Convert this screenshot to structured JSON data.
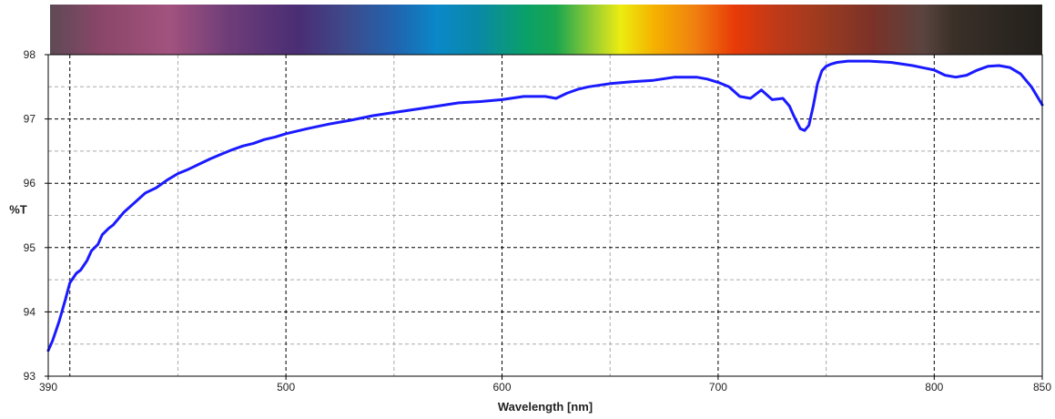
{
  "chart_data": {
    "type": "line",
    "title": "",
    "xlabel": "Wavelength [nm]",
    "ylabel": "%T",
    "xlim": [
      390,
      850
    ],
    "ylim": [
      93,
      98
    ],
    "x_tick_labels": [
      "390",
      "500",
      "600",
      "700",
      "800",
      "850"
    ],
    "y_tick_labels": [
      "93",
      "94",
      "95",
      "96",
      "97",
      "98"
    ],
    "grid": true,
    "legend": "none",
    "spectrum_bar": true,
    "colors": {
      "line": "#1a1aff",
      "grid_major": "#000000",
      "grid_minor": "#aaaaaa",
      "frame": "#000000"
    },
    "series": [
      {
        "name": "",
        "x": [
          390,
          392,
          395,
          398,
          400,
          403,
          405,
          408,
          410,
          413,
          415,
          418,
          420,
          425,
          430,
          435,
          440,
          445,
          450,
          455,
          460,
          465,
          470,
          475,
          480,
          485,
          490,
          495,
          500,
          510,
          520,
          530,
          540,
          550,
          560,
          570,
          580,
          590,
          600,
          610,
          620,
          625,
          630,
          635,
          640,
          650,
          660,
          670,
          680,
          690,
          695,
          700,
          705,
          710,
          715,
          720,
          725,
          730,
          733,
          735,
          738,
          740,
          742,
          744,
          746,
          748,
          750,
          752,
          755,
          760,
          770,
          780,
          790,
          800,
          805,
          810,
          815,
          820,
          825,
          830,
          835,
          840,
          845,
          850
        ],
        "y": [
          93.4,
          93.55,
          93.85,
          94.2,
          94.45,
          94.6,
          94.65,
          94.8,
          94.95,
          95.05,
          95.2,
          95.3,
          95.35,
          95.55,
          95.7,
          95.85,
          95.93,
          96.05,
          96.15,
          96.22,
          96.3,
          96.38,
          96.45,
          96.52,
          96.58,
          96.62,
          96.68,
          96.72,
          96.77,
          96.85,
          96.92,
          96.98,
          97.05,
          97.1,
          97.15,
          97.2,
          97.25,
          97.27,
          97.3,
          97.35,
          97.35,
          97.32,
          97.4,
          97.46,
          97.5,
          97.55,
          97.58,
          97.6,
          97.65,
          97.65,
          97.62,
          97.57,
          97.5,
          97.35,
          97.32,
          97.45,
          97.3,
          97.32,
          97.2,
          97.05,
          96.85,
          96.82,
          96.9,
          97.2,
          97.55,
          97.75,
          97.82,
          97.85,
          97.88,
          97.9,
          97.9,
          97.88,
          97.83,
          97.76,
          97.68,
          97.65,
          97.68,
          97.76,
          97.82,
          97.83,
          97.8,
          97.7,
          97.5,
          97.22
        ]
      }
    ]
  }
}
